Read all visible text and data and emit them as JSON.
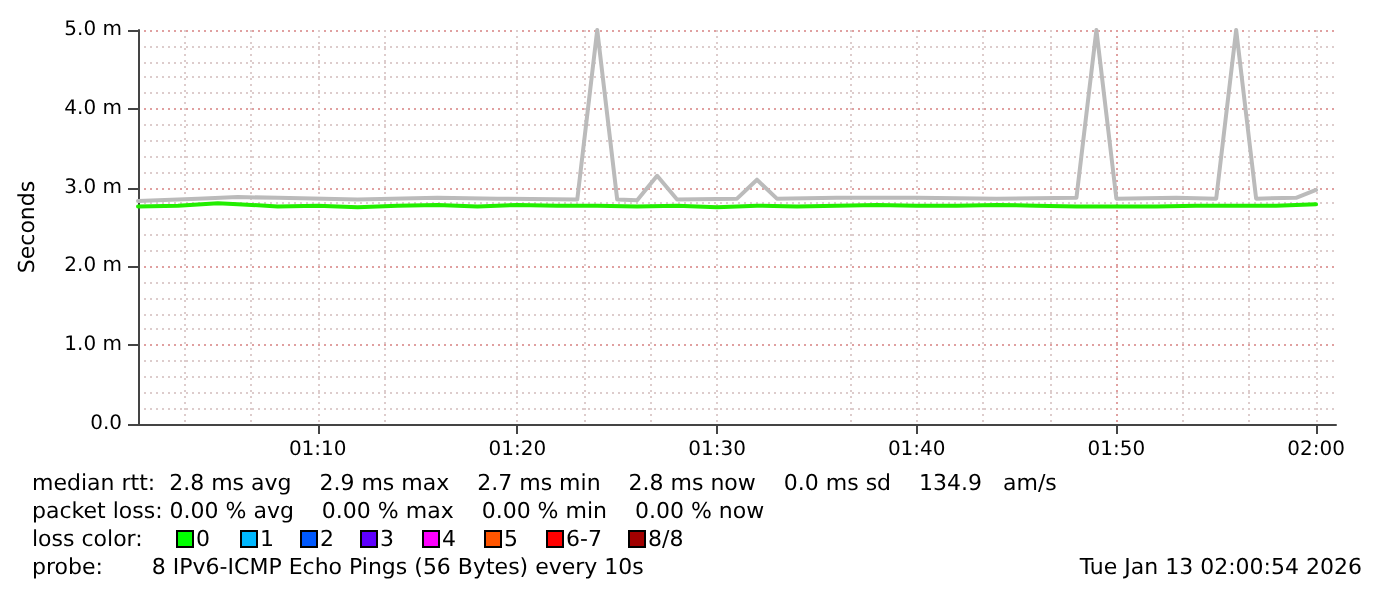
{
  "chart_data": {
    "type": "line",
    "ylabel": "Seconds",
    "xlim": [
      "2026-01-13T01:01",
      "2026-01-13T02:01"
    ],
    "xticks": [
      {
        "value": "2026-01-13T01:10",
        "label": "01:10"
      },
      {
        "value": "2026-01-13T01:20",
        "label": "01:20"
      },
      {
        "value": "2026-01-13T01:30",
        "label": "01:30"
      },
      {
        "value": "2026-01-13T01:40",
        "label": "01:40"
      },
      {
        "value": "2026-01-13T01:50",
        "label": "01:50"
      },
      {
        "value": "2026-01-13T02:00",
        "label": "02:00"
      }
    ],
    "ylim": [
      0,
      5
    ],
    "yticks": [
      {
        "value": 0,
        "label": "0.0"
      },
      {
        "value": 1,
        "label": "1.0 m"
      },
      {
        "value": 2,
        "label": "2.0 m"
      },
      {
        "value": 3,
        "label": "3.0 m"
      },
      {
        "value": 4,
        "label": "4.0 m"
      },
      {
        "value": 5,
        "label": "5.0 m"
      }
    ],
    "grid": true,
    "marker": "none",
    "line_style": "solid",
    "series": [
      {
        "color": "#bbbbbb",
        "x": [
          "2026-01-13T01:01",
          "2026-01-13T01:04",
          "2026-01-13T01:06",
          "2026-01-13T01:08",
          "2026-01-13T01:12",
          "2026-01-13T01:16",
          "2026-01-13T01:19",
          "2026-01-13T01:23",
          "2026-01-13T01:24",
          "2026-01-13T01:25",
          "2026-01-13T01:26",
          "2026-01-13T01:27",
          "2026-01-13T01:28",
          "2026-01-13T01:31",
          "2026-01-13T01:32",
          "2026-01-13T01:33",
          "2026-01-13T01:36",
          "2026-01-13T01:40",
          "2026-01-13T01:44",
          "2026-01-13T01:48",
          "2026-01-13T01:49",
          "2026-01-13T01:50",
          "2026-01-13T01:53",
          "2026-01-13T01:55",
          "2026-01-13T01:56",
          "2026-01-13T01:57",
          "2026-01-13T01:59",
          "2026-01-13T02:00"
        ],
        "values": [
          2.83,
          2.86,
          2.88,
          2.87,
          2.85,
          2.87,
          2.86,
          2.85,
          5.0,
          2.85,
          2.84,
          3.15,
          2.85,
          2.86,
          3.1,
          2.86,
          2.87,
          2.87,
          2.86,
          2.87,
          5.0,
          2.86,
          2.87,
          2.86,
          5.0,
          2.86,
          2.87,
          2.97
        ]
      },
      {
        "color": "#22ee00",
        "x": [
          "2026-01-13T01:01",
          "2026-01-13T01:03",
          "2026-01-13T01:05",
          "2026-01-13T01:06",
          "2026-01-13T01:08",
          "2026-01-13T01:10",
          "2026-01-13T01:12",
          "2026-01-13T01:14",
          "2026-01-13T01:16",
          "2026-01-13T01:18",
          "2026-01-13T01:20",
          "2026-01-13T01:22",
          "2026-01-13T01:24",
          "2026-01-13T01:26",
          "2026-01-13T01:28",
          "2026-01-13T01:30",
          "2026-01-13T01:32",
          "2026-01-13T01:34",
          "2026-01-13T01:36",
          "2026-01-13T01:38",
          "2026-01-13T01:40",
          "2026-01-13T01:42",
          "2026-01-13T01:44",
          "2026-01-13T01:46",
          "2026-01-13T01:48",
          "2026-01-13T01:50",
          "2026-01-13T01:52",
          "2026-01-13T01:54",
          "2026-01-13T01:56",
          "2026-01-13T01:58",
          "2026-01-13T02:00"
        ],
        "values": [
          2.76,
          2.77,
          2.8,
          2.79,
          2.76,
          2.77,
          2.75,
          2.77,
          2.78,
          2.76,
          2.78,
          2.77,
          2.77,
          2.76,
          2.77,
          2.75,
          2.77,
          2.76,
          2.77,
          2.78,
          2.77,
          2.77,
          2.78,
          2.77,
          2.76,
          2.76,
          2.76,
          2.77,
          2.77,
          2.77,
          2.79
        ]
      }
    ],
    "annotations": [
      "median rtt:  2.8 ms avg    2.9 ms max    2.7 ms min    2.8 ms now    0.0 ms sd    134.9   am/s",
      "packet loss: 0.00 % avg    0.00 % max    0.00 % min    0.00 % now",
      "loss color:",
      "0",
      "1",
      "2",
      "3",
      "4",
      "5",
      "6-7",
      "8/8",
      "probe:       8 IPv6-ICMP Echo Pings (56 Bytes) every 10s",
      "Tue Jan 13 02:00:54 2026"
    ]
  }
}
